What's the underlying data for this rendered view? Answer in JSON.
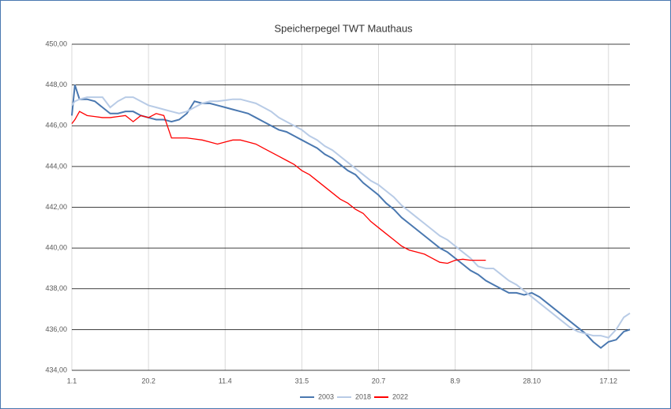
{
  "chart_data": {
    "type": "line",
    "title": "Speicherpegel TWT Mauthaus",
    "x": [
      1,
      3,
      6,
      11,
      16,
      21,
      26,
      31,
      36,
      41,
      46,
      51,
      56,
      61,
      66,
      71,
      76,
      81,
      86,
      91,
      96,
      101,
      106,
      111,
      116,
      121,
      126,
      131,
      136,
      141,
      146,
      151,
      156,
      161,
      166,
      171,
      176,
      181,
      186,
      191,
      196,
      201,
      206,
      211,
      216,
      221,
      226,
      231,
      236,
      241,
      246,
      251,
      256,
      261,
      266,
      271,
      276,
      281,
      286,
      291,
      296,
      301,
      306,
      311,
      316,
      321,
      326,
      331,
      336,
      341,
      346,
      351,
      356,
      361,
      365
    ],
    "series": [
      {
        "name": "2003",
        "color": "#4a78b0",
        "values": [
          446.5,
          448.0,
          447.3,
          447.3,
          447.2,
          446.9,
          446.6,
          446.6,
          446.7,
          446.7,
          446.5,
          446.4,
          446.3,
          446.3,
          446.2,
          446.3,
          446.6,
          447.2,
          447.1,
          447.1,
          447.0,
          446.9,
          446.8,
          446.7,
          446.6,
          446.4,
          446.2,
          446.0,
          445.8,
          445.7,
          445.5,
          445.3,
          445.1,
          444.9,
          444.6,
          444.4,
          444.1,
          443.8,
          443.6,
          443.2,
          442.9,
          442.6,
          442.2,
          441.9,
          441.5,
          441.2,
          440.9,
          440.6,
          440.3,
          440.0,
          439.8,
          439.5,
          439.2,
          438.9,
          438.7,
          438.4,
          438.2,
          438.0,
          437.8,
          437.8,
          437.7,
          437.8,
          437.6,
          437.3,
          437.0,
          436.7,
          436.4,
          436.1,
          435.8,
          435.4,
          435.1,
          435.4,
          435.5,
          435.9,
          436.0
        ]
      },
      {
        "name": "2018",
        "color": "#b8cbe6",
        "values": [
          447.0,
          447.2,
          447.3,
          447.4,
          447.4,
          447.4,
          446.9,
          447.2,
          447.4,
          447.4,
          447.2,
          447.0,
          446.9,
          446.8,
          446.7,
          446.6,
          446.7,
          446.9,
          447.1,
          447.2,
          447.2,
          447.25,
          447.3,
          447.3,
          447.2,
          447.1,
          446.9,
          446.7,
          446.4,
          446.2,
          446.0,
          445.8,
          445.5,
          445.3,
          445.0,
          444.8,
          444.5,
          444.2,
          443.9,
          443.6,
          443.3,
          443.1,
          442.8,
          442.5,
          442.1,
          441.8,
          441.5,
          441.2,
          440.9,
          440.6,
          440.4,
          440.1,
          439.8,
          439.5,
          439.1,
          439.0,
          439.0,
          438.7,
          438.4,
          438.2,
          437.9,
          437.6,
          437.3,
          437.0,
          436.7,
          436.4,
          436.1,
          435.9,
          435.8,
          435.7,
          435.7,
          435.6,
          436.0,
          436.6,
          436.8
        ]
      },
      {
        "name": "2022",
        "color": "#ff0000",
        "values": [
          446.1,
          446.3,
          446.7,
          446.5,
          446.45,
          446.4,
          446.4,
          446.45,
          446.5,
          446.2,
          446.5,
          446.4,
          446.6,
          446.5,
          445.4,
          445.4,
          445.4,
          445.35,
          445.3,
          445.2,
          445.1,
          445.2,
          445.3,
          445.3,
          445.2,
          445.1,
          444.9,
          444.7,
          444.5,
          444.3,
          444.1,
          443.8,
          443.6,
          443.3,
          443.0,
          442.7,
          442.4,
          442.2,
          441.9,
          441.7,
          441.3,
          441.0,
          440.7,
          440.4,
          440.1,
          439.9,
          439.8,
          439.7,
          439.5,
          439.3,
          439.25,
          439.4,
          439.45,
          439.4,
          439.4,
          439.4,
          null,
          null,
          null,
          null,
          null,
          null,
          null,
          null,
          null,
          null,
          null,
          null,
          null,
          null,
          null,
          null,
          null,
          null,
          null
        ]
      }
    ],
    "xlim": [
      1,
      365
    ],
    "xticks": [
      {
        "value": 1,
        "label": "1.1"
      },
      {
        "value": 51,
        "label": "20.2"
      },
      {
        "value": 101,
        "label": "11.4"
      },
      {
        "value": 151,
        "label": "31.5"
      },
      {
        "value": 201,
        "label": "20.7"
      },
      {
        "value": 251,
        "label": "8.9"
      },
      {
        "value": 301,
        "label": "28.10"
      },
      {
        "value": 351,
        "label": "17.12"
      }
    ],
    "ylim": [
      434,
      450
    ],
    "yticks": [
      {
        "value": 434,
        "label": "434,00"
      },
      {
        "value": 436,
        "label": "436,00"
      },
      {
        "value": 438,
        "label": "438,00"
      },
      {
        "value": 440,
        "label": "440,00"
      },
      {
        "value": 442,
        "label": "442,00"
      },
      {
        "value": 444,
        "label": "444,00"
      },
      {
        "value": 446,
        "label": "446,00"
      },
      {
        "value": 448,
        "label": "448,00"
      },
      {
        "value": 450,
        "label": "450,00"
      }
    ],
    "grid": true,
    "legend": "bottom"
  }
}
